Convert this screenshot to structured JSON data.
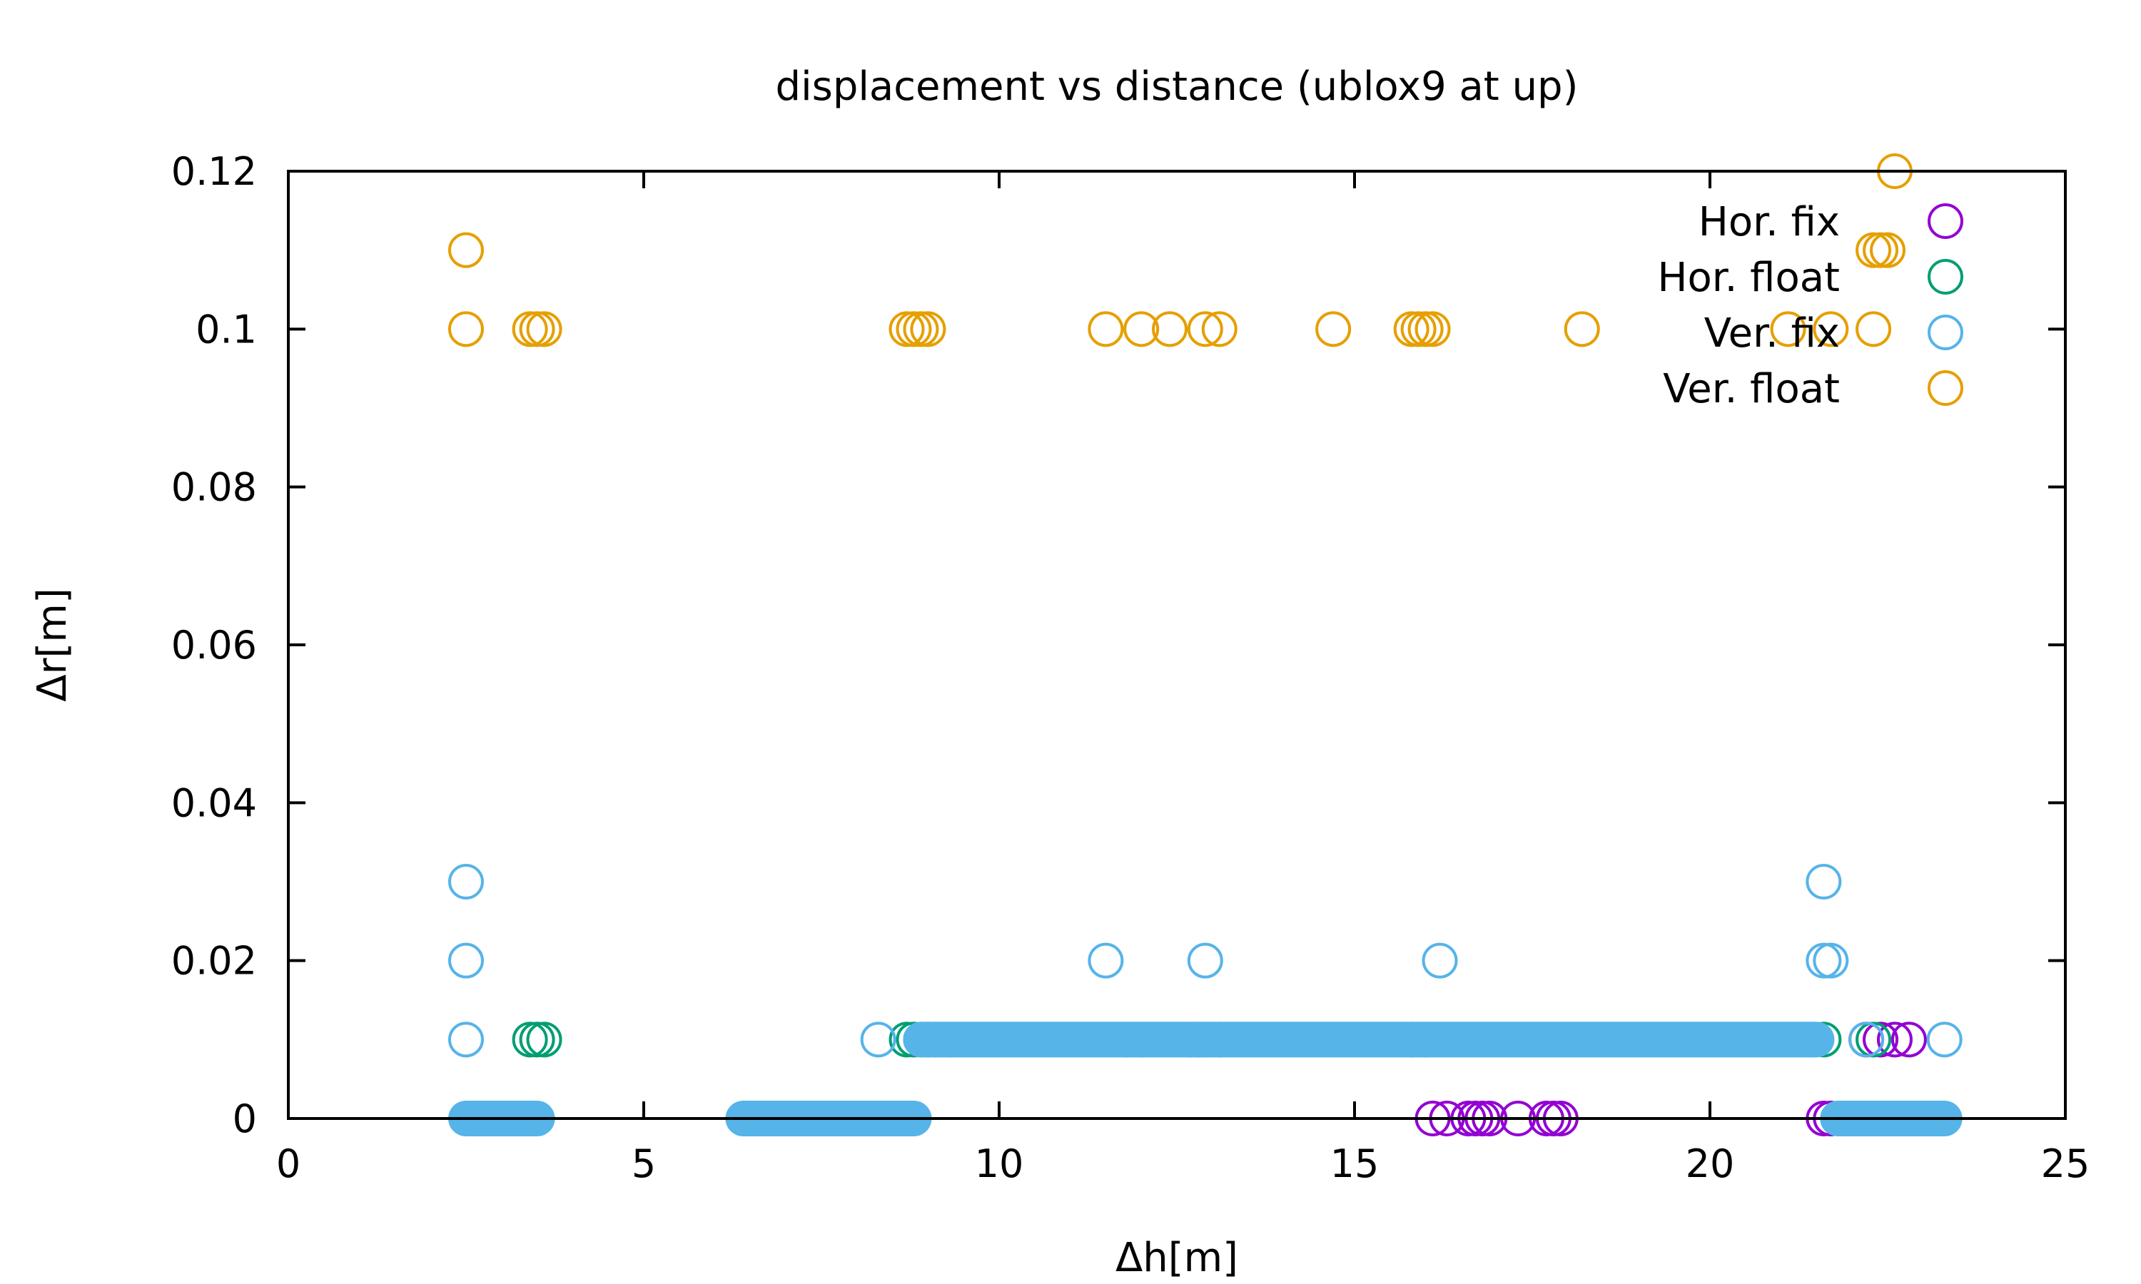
{
  "chart_data": {
    "type": "scatter",
    "title": "displacement vs distance (ublox9 at up)",
    "xlabel": "Δh[m]",
    "ylabel": "Δr[m]",
    "xlim": [
      0,
      25
    ],
    "ylim": [
      0,
      0.12
    ],
    "xticks": [
      "0",
      "5",
      "10",
      "15",
      "20",
      "25"
    ],
    "yticks": [
      "0",
      "0.02",
      "0.04",
      "0.06",
      "0.08",
      "0.1",
      "0.12"
    ],
    "grid": false,
    "legend": "top-right",
    "marker": "open-circle",
    "series": [
      {
        "name": "Hor. fix",
        "color": "#9400d3",
        "x": [
          8.6,
          12.8,
          16.1,
          16.3,
          16.6,
          16.7,
          16.8,
          16.9,
          17.3,
          17.7,
          17.8,
          17.9,
          21.6,
          21.7,
          22.0,
          22.2,
          22.4,
          22.6,
          22.8
        ],
        "y": [
          0,
          0.01,
          0,
          0,
          0,
          0,
          0,
          0,
          0,
          0,
          0,
          0,
          0,
          0,
          0,
          0.01,
          0.01,
          0.01,
          0.01
        ]
      },
      {
        "name": "Hor. float",
        "color": "#009e73",
        "x": [
          3.4,
          3.5,
          3.6,
          8.7,
          8.8,
          8.9,
          9.0,
          9.1,
          9.3,
          11.8,
          12.0,
          12.7,
          12.9,
          13.1,
          15.8,
          16.0,
          21.6,
          22.3
        ],
        "y": [
          0.01,
          0.01,
          0.01,
          0.01,
          0.01,
          0.01,
          0.01,
          0.01,
          0.01,
          0.01,
          0.01,
          0.01,
          0.01,
          0.01,
          0.01,
          0.01,
          0.01,
          0.01
        ]
      },
      {
        "name": "Ver. fix",
        "color": "#56b4e9",
        "x": [
          2.5,
          2.5,
          2.5,
          8.3,
          11.5,
          12.9,
          16.2,
          21.6,
          21.6,
          21.7,
          22.2,
          23.3
        ],
        "y": [
          0.03,
          0.02,
          0.01,
          0.01,
          0.02,
          0.02,
          0.02,
          0.03,
          0.02,
          0.02,
          0.01,
          0.01
        ],
        "clusters": [
          {
            "x_from": 2.5,
            "x_to": 3.5,
            "y": 0
          },
          {
            "x_from": 6.4,
            "x_to": 8.8,
            "y": 0
          },
          {
            "x_from": 8.9,
            "x_to": 21.5,
            "y": 0.01
          },
          {
            "x_from": 21.8,
            "x_to": 23.3,
            "y": 0
          }
        ]
      },
      {
        "name": "Ver. float",
        "color": "#e69f00",
        "x": [
          2.5,
          2.5,
          3.4,
          3.5,
          3.6,
          8.7,
          8.8,
          8.9,
          9.0,
          11.5,
          12.0,
          12.4,
          12.9,
          13.1,
          14.7,
          15.8,
          15.9,
          16.0,
          16.1,
          18.2,
          21.1,
          21.7,
          22.3,
          22.3,
          22.4,
          22.5,
          22.6
        ],
        "y": [
          0.11,
          0.1,
          0.1,
          0.1,
          0.1,
          0.1,
          0.1,
          0.1,
          0.1,
          0.1,
          0.1,
          0.1,
          0.1,
          0.1,
          0.1,
          0.1,
          0.1,
          0.1,
          0.1,
          0.1,
          0.1,
          0.1,
          0.1,
          0.11,
          0.11,
          0.11,
          0.12
        ]
      }
    ]
  }
}
